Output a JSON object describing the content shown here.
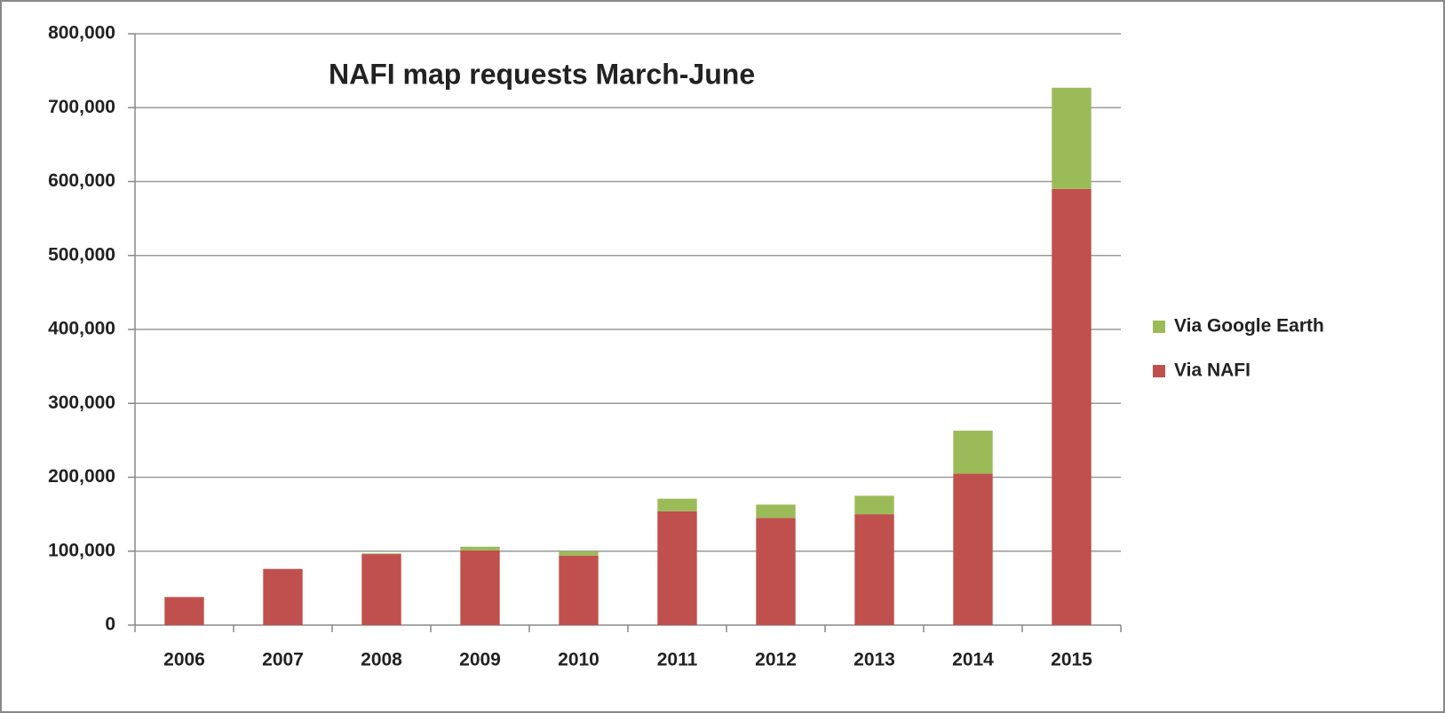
{
  "chart_data": {
    "type": "bar",
    "stacked": true,
    "title": "NAFI map requests March-June",
    "categories": [
      "2006",
      "2007",
      "2008",
      "2009",
      "2010",
      "2011",
      "2012",
      "2013",
      "2014",
      "2015"
    ],
    "series": [
      {
        "name": "Via NAFI",
        "color": "#c0504d",
        "values": [
          38000,
          76000,
          96000,
          101000,
          94000,
          154000,
          145000,
          150000,
          205000,
          590000
        ]
      },
      {
        "name": "Via Google Earth",
        "color": "#9bbb59",
        "values": [
          0,
          0,
          1000,
          5000,
          6000,
          17000,
          18000,
          25000,
          58000,
          137000
        ]
      }
    ],
    "ylim": [
      0,
      800000
    ],
    "yticks": [
      0,
      {
        "value": 100000,
        "label": "100,000"
      },
      {
        "value": 200000,
        "label": "200,000"
      },
      {
        "value": 300000,
        "label": "300,000"
      },
      {
        "value": 400000,
        "label": "400,000"
      },
      {
        "value": 500000,
        "label": "500,000"
      },
      {
        "value": 600000,
        "label": "600,000"
      },
      {
        "value": 700000,
        "label": "700,000"
      },
      {
        "value": 800000,
        "label": "800,000"
      }
    ],
    "grid": true,
    "legend": "right"
  }
}
